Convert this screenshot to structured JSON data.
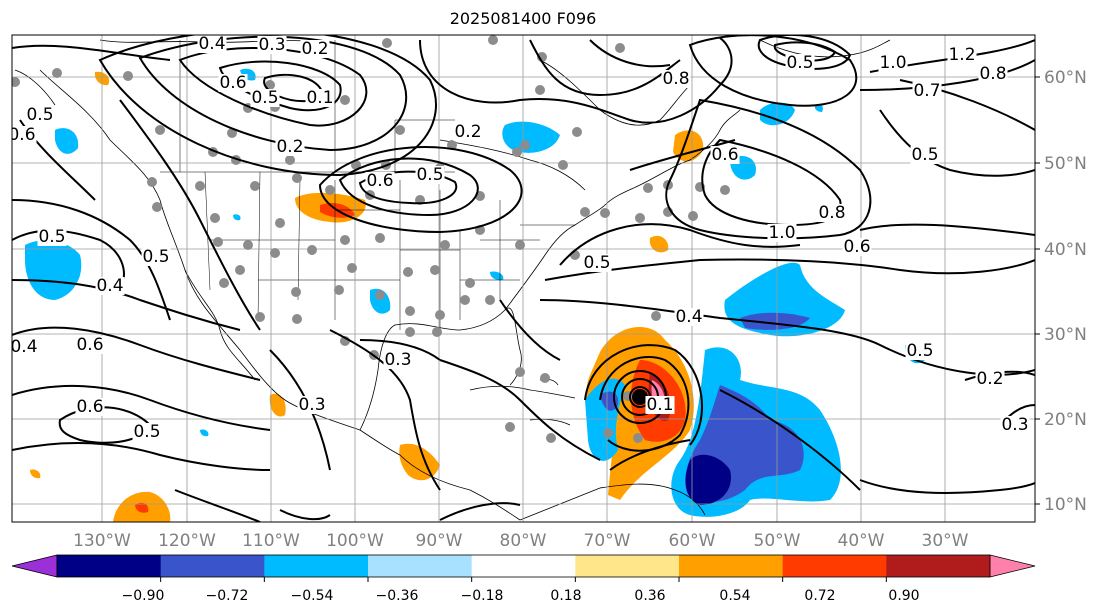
{
  "title": "2025081400 F096",
  "lon_labels": [
    "130°W",
    "120°W",
    "110°W",
    "100°W",
    "90°W",
    "80°W",
    "70°W",
    "60°W",
    "50°W",
    "40°W",
    "30°W"
  ],
  "lat_labels": [
    "60°N",
    "50°N",
    "40°N",
    "30°N",
    "20°N",
    "10°N"
  ],
  "colorbar": {
    "ticks": [
      "−0.90",
      "−0.72",
      "−0.54",
      "−0.36",
      "−0.18",
      "0.18",
      "0.36",
      "0.54",
      "0.72",
      "0.90"
    ],
    "colors": [
      "#9b30d9",
      "#000087",
      "#3a54cc",
      "#00bbff",
      "#a8e0ff",
      "#ffffff",
      "#ffe68a",
      "#ff9f00",
      "#ff3b00",
      "#b01c1c",
      "#ff80aa"
    ]
  },
  "contour_labels": [
    {
      "text": "0.4"
    },
    {
      "text": "0.3"
    },
    {
      "text": "0.2"
    },
    {
      "text": "0.6"
    },
    {
      "text": "0.5"
    },
    {
      "text": "0.1"
    },
    {
      "text": "0.2"
    },
    {
      "text": "0.6"
    },
    {
      "text": "0.5"
    },
    {
      "text": "0.2"
    },
    {
      "text": "0.6"
    },
    {
      "text": "0.5"
    },
    {
      "text": "0.8"
    },
    {
      "text": "0.5"
    },
    {
      "text": "1.0"
    },
    {
      "text": "1.2"
    },
    {
      "text": "0.7"
    },
    {
      "text": "0.8"
    },
    {
      "text": "0.5"
    },
    {
      "text": "1.0"
    },
    {
      "text": "0.8"
    },
    {
      "text": "0.6"
    },
    {
      "text": "0.5"
    },
    {
      "text": "0.4"
    },
    {
      "text": "0.5"
    },
    {
      "text": "0.4"
    },
    {
      "text": "0.6"
    },
    {
      "text": "0.6"
    },
    {
      "text": "0.5"
    },
    {
      "text": "0.3"
    },
    {
      "text": "0.3"
    },
    {
      "text": "0.4"
    },
    {
      "text": "0.5"
    },
    {
      "text": "0.2"
    },
    {
      "text": "0.3"
    },
    {
      "text": "0.5"
    },
    {
      "text": "0.6"
    },
    {
      "text": "0.1"
    }
  ]
}
